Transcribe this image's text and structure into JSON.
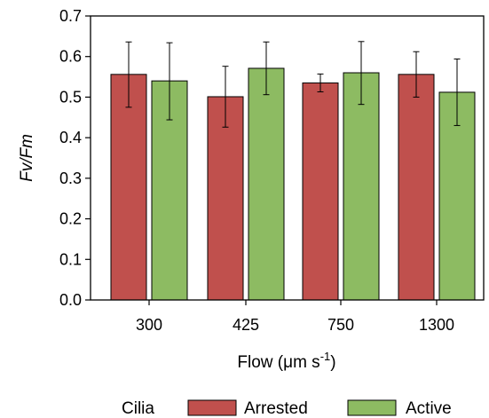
{
  "chart_data": {
    "type": "bar",
    "xlabel": "Flow (μm s",
    "xlabel_sup": "-1",
    "xlabel_close": ")",
    "ylabel": "Fv/Fm",
    "ylim": [
      0,
      0.7
    ],
    "yticks": [
      "0.0",
      "0.1",
      "0.2",
      "0.3",
      "0.4",
      "0.5",
      "0.6",
      "0.7"
    ],
    "ytick_values": [
      0,
      0.1,
      0.2,
      0.3,
      0.4,
      0.5,
      0.6,
      0.7
    ],
    "categories": [
      "300",
      "425",
      "750",
      "1300"
    ],
    "series": [
      {
        "name": "Arrested",
        "color": "#c0504d",
        "values": [
          0.556,
          0.501,
          0.535,
          0.556
        ],
        "error_low": [
          0.475,
          0.426,
          0.513,
          0.5
        ],
        "error_high": [
          0.636,
          0.576,
          0.557,
          0.612
        ]
      },
      {
        "name": "Active",
        "color": "#8dbb62",
        "values": [
          0.54,
          0.571,
          0.56,
          0.512
        ],
        "error_low": [
          0.444,
          0.506,
          0.482,
          0.43
        ],
        "error_high": [
          0.634,
          0.636,
          0.637,
          0.594
        ]
      }
    ],
    "legend": {
      "title": "Cilia",
      "placement": "bottom"
    },
    "grid": false
  }
}
